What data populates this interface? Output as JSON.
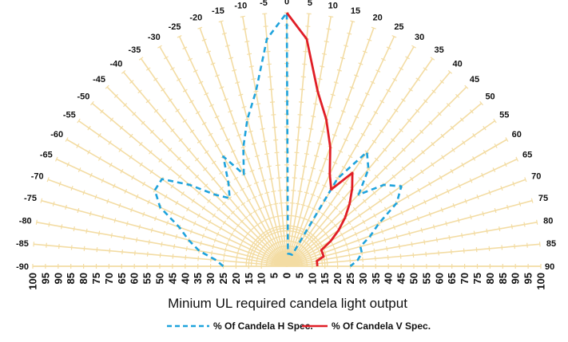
{
  "chart_data": {
    "type": "polar-line",
    "title": "",
    "xlabel": "Minium UL required candela light output",
    "angle_ticks": [
      -90,
      -85,
      -80,
      -75,
      -70,
      -65,
      -60,
      -55,
      -50,
      -45,
      -40,
      -35,
      -30,
      -25,
      -20,
      -15,
      -10,
      -5,
      0,
      5,
      10,
      15,
      20,
      25,
      30,
      35,
      40,
      45,
      50,
      55,
      60,
      65,
      70,
      75,
      80,
      85,
      90
    ],
    "radial_ticks": [
      100,
      95,
      90,
      85,
      80,
      75,
      70,
      65,
      60,
      55,
      50,
      45,
      40,
      35,
      30,
      25,
      20,
      15,
      10,
      5,
      0,
      0,
      5,
      10,
      15,
      20,
      25,
      30,
      35,
      40,
      45,
      50,
      55,
      60,
      65,
      70,
      75,
      80,
      85,
      90,
      95,
      100
    ],
    "radial_range": [
      0,
      100
    ],
    "grid": true,
    "legend_position": "bottom",
    "series": [
      {
        "name": "% Of Candela H Spec.",
        "color": "#1fa3dc",
        "style": "dashed",
        "angles": [
          0,
          -5,
          -10,
          -15,
          -20,
          -25,
          -30,
          -35,
          -40,
          -45,
          -50,
          -55,
          -60,
          -65,
          -70,
          -75,
          -80,
          -85,
          -90,
          5,
          10,
          15,
          20,
          25,
          30,
          35,
          40,
          45,
          50,
          55,
          60,
          65,
          70,
          75,
          80,
          85,
          90
        ],
        "values": [
          100,
          90,
          70,
          60,
          50,
          40,
          50,
          40,
          35,
          40,
          50,
          60,
          60,
          55,
          45,
          40,
          35,
          28,
          25,
          5,
          5,
          5,
          5,
          5,
          40,
          55,
          50,
          40,
          50,
          55,
          50,
          40,
          35,
          30,
          30,
          28,
          25
        ]
      },
      {
        "name": "% Of Candela V Spec.",
        "color": "#e01e26",
        "style": "solid",
        "angles": [
          0,
          5,
          10,
          15,
          20,
          25,
          30,
          35,
          40,
          45,
          50,
          55,
          60,
          65,
          70,
          75,
          80,
          85,
          90
        ],
        "values": [
          100,
          90,
          70,
          60,
          50,
          40,
          35,
          45,
          40,
          35,
          30,
          25,
          20,
          15,
          15,
          15,
          12,
          12,
          12
        ]
      }
    ]
  }
}
